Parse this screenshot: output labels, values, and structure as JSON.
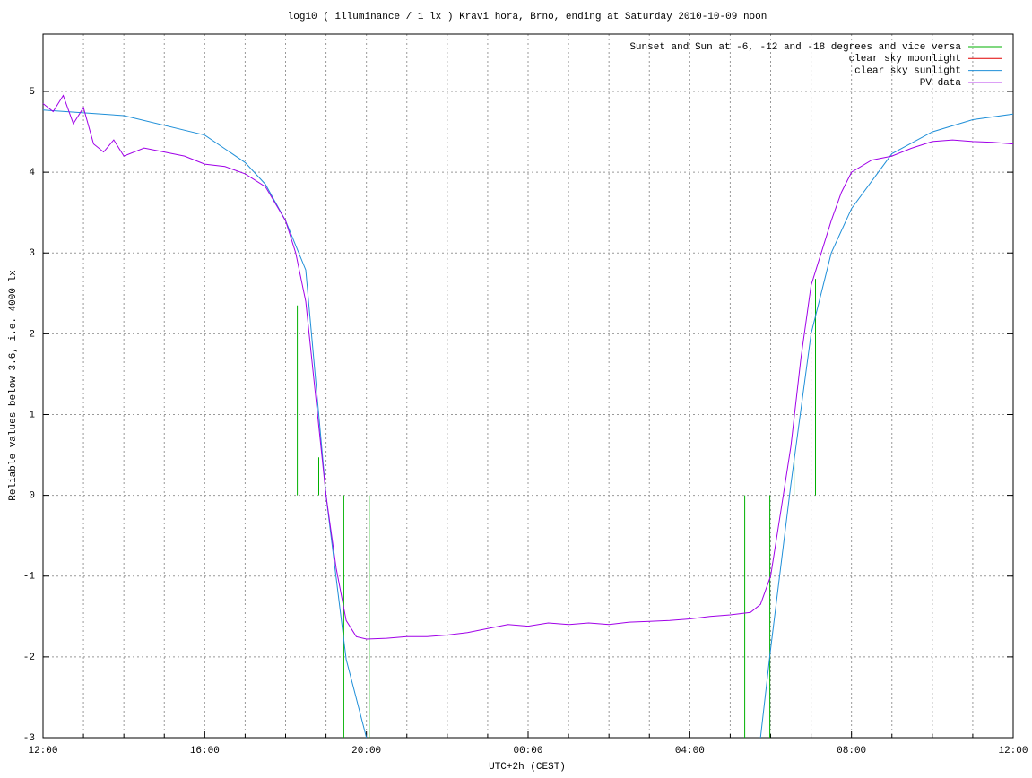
{
  "chart_data": {
    "type": "line",
    "title": "log10 ( illuminance / 1 lx ) Kravi hora, Brno, ending at Saturday 2010-10-09 noon",
    "x_label": "UTC+2h (CEST)",
    "y_label": "Reliable values below 3.6, i.e. 4000 lx",
    "xlim": [
      12,
      36
    ],
    "ylim": [
      -3,
      5.71
    ],
    "xticks": [
      {
        "value": 12,
        "label": "12:00"
      },
      {
        "value": 16,
        "label": "16:00"
      },
      {
        "value": 20,
        "label": "20:00"
      },
      {
        "value": 24,
        "label": "00:00"
      },
      {
        "value": 28,
        "label": "04:00"
      },
      {
        "value": 32,
        "label": "08:00"
      },
      {
        "value": 36,
        "label": "12:00"
      }
    ],
    "x_minor_ticks": [
      13,
      14,
      15,
      17,
      18,
      19,
      21,
      22,
      23,
      25,
      26,
      27,
      29,
      30,
      31,
      33,
      34,
      35
    ],
    "yticks": [
      -3,
      -2,
      -1,
      0,
      1,
      2,
      3,
      4,
      5
    ],
    "grid": true,
    "legend": "upper right",
    "series": [
      {
        "name": "Sunset and Sun at -6, -12 and -18 degrees and vice versa",
        "color": "#00b000",
        "x": [
          18.29,
          18.29,
          null,
          18.82,
          18.82,
          null,
          19.44,
          19.44,
          null,
          20.07,
          20.07,
          null,
          29.36,
          29.36,
          null,
          29.98,
          29.98,
          null,
          30.58,
          30.58,
          null,
          31.11,
          31.11
        ],
        "values": [
          0,
          2.35,
          null,
          0,
          0.47,
          null,
          0,
          -3,
          null,
          0,
          -3,
          null,
          0,
          -3,
          null,
          0,
          -3,
          null,
          0,
          0.47,
          null,
          0,
          2.68
        ]
      },
      {
        "name": "clear sky moonlight",
        "color": "#e00000",
        "x": [],
        "values": []
      },
      {
        "name": "clear sky sunlight",
        "color": "#1f8fd8",
        "x": [
          12,
          14,
          16,
          17,
          17.5,
          18,
          18.5,
          19,
          19.5,
          20,
          null,
          29.75,
          30,
          30.5,
          31,
          31.5,
          32,
          33,
          34,
          35,
          36
        ],
        "values": [
          4.77,
          4.7,
          4.46,
          4.12,
          3.85,
          3.4,
          2.79,
          0.0,
          -2.03,
          -3,
          null,
          -3,
          -1.9,
          0.13,
          2.0,
          3.0,
          3.55,
          4.23,
          4.5,
          4.65,
          4.72
        ]
      },
      {
        "name": "PV data",
        "color": "#a000e8",
        "x": [
          12,
          12.25,
          12.5,
          12.75,
          13,
          13.25,
          13.5,
          13.75,
          14,
          14.5,
          15,
          15.5,
          16,
          16.5,
          17,
          17.5,
          18,
          18.25,
          18.5,
          18.75,
          19,
          19.25,
          19.5,
          19.75,
          20,
          20.5,
          21,
          21.5,
          22,
          22.5,
          23,
          23.5,
          24,
          24.5,
          25,
          25.5,
          26,
          26.5,
          27,
          27.5,
          28,
          28.5,
          29,
          29.5,
          29.75,
          30,
          30.25,
          30.5,
          30.75,
          31,
          31.25,
          31.5,
          31.75,
          32,
          32.5,
          33,
          33.5,
          34,
          34.5,
          35,
          35.5,
          36
        ],
        "values": [
          4.85,
          4.75,
          4.95,
          4.6,
          4.8,
          4.35,
          4.25,
          4.4,
          4.2,
          4.3,
          4.25,
          4.2,
          4.1,
          4.07,
          3.98,
          3.82,
          3.4,
          3.0,
          2.4,
          1.2,
          0.0,
          -0.9,
          -1.55,
          -1.75,
          -1.78,
          -1.77,
          -1.75,
          -1.75,
          -1.73,
          -1.7,
          -1.65,
          -1.6,
          -1.62,
          -1.58,
          -1.6,
          -1.58,
          -1.6,
          -1.57,
          -1.56,
          -1.55,
          -1.53,
          -1.5,
          -1.48,
          -1.45,
          -1.35,
          -1.0,
          -0.2,
          0.6,
          1.7,
          2.6,
          3.0,
          3.4,
          3.75,
          4.0,
          4.15,
          4.2,
          4.3,
          4.38,
          4.4,
          4.38,
          4.37,
          4.35
        ]
      }
    ]
  }
}
